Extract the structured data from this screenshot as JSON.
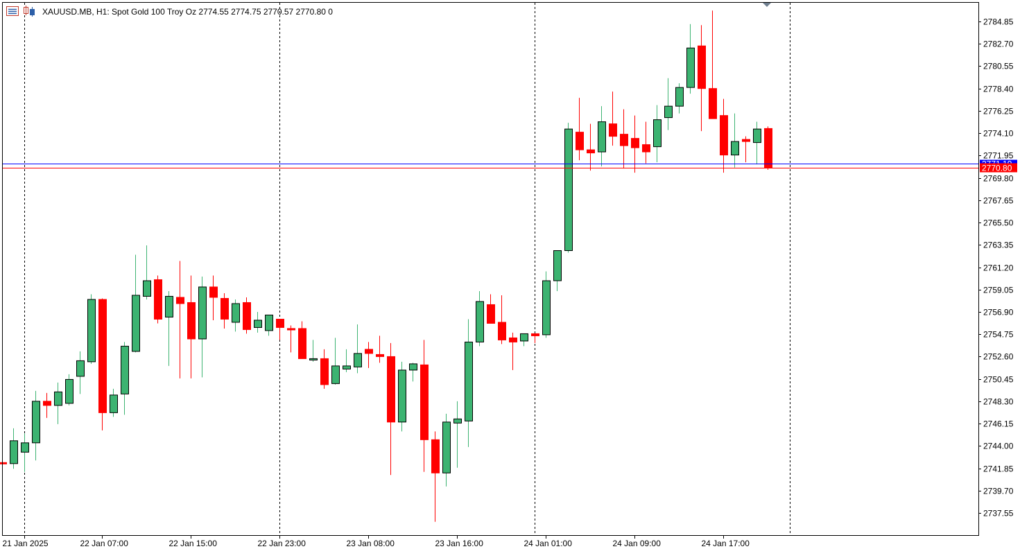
{
  "header": {
    "symbol_info": "XAUUSD.MB, H1:  Spot Gold 100 Troy Oz  2774.55 2774.75 2770.57 2770.80  0"
  },
  "colors": {
    "bull": "#3cb371",
    "bear": "#ff0000",
    "outline": "#000000",
    "bid_line": "#ff0000",
    "ask_line": "#0000ff",
    "grid_period": "#000000",
    "border": "#000000"
  },
  "icons": [
    "chart-window-icon",
    "chart-type-icon",
    "period-marker-icon"
  ],
  "price_labels": {
    "bid": "2770.80",
    "ask": "2771.19"
  },
  "chart_data": {
    "type": "candlestick",
    "symbol": "XAUUSD.MB",
    "timeframe": "H1",
    "ylim": [
      2735.4,
      2787.0
    ],
    "y_ticks": [
      "2784.85",
      "2782.70",
      "2780.55",
      "2778.40",
      "2776.25",
      "2774.10",
      "2771.95",
      "2769.80",
      "2767.65",
      "2765.50",
      "2763.35",
      "2761.20",
      "2759.05",
      "2756.90",
      "2754.75",
      "2752.60",
      "2750.45",
      "2748.30",
      "2746.15",
      "2744.00",
      "2741.85",
      "2739.70",
      "2737.55"
    ],
    "x_ticks": [
      {
        "label": "21 Jan 2025",
        "bar": 2
      },
      {
        "label": "22 Jan 07:00",
        "bar": 9
      },
      {
        "label": "22 Jan 15:00",
        "bar": 17
      },
      {
        "label": "22 Jan 23:00",
        "bar": 25
      },
      {
        "label": "23 Jan 08:00",
        "bar": 33
      },
      {
        "label": "23 Jan 16:00",
        "bar": 41
      },
      {
        "label": "24 Jan 01:00",
        "bar": 49
      },
      {
        "label": "24 Jan 09:00",
        "bar": 57
      },
      {
        "label": "24 Jan 17:00",
        "bar": 65
      }
    ],
    "period_separators_bars": [
      2,
      25,
      48,
      71
    ],
    "bid": 2770.8,
    "ask": 2771.19,
    "candles": [
      [
        2742.4,
        2742.4,
        2742.2,
        2742.3
      ],
      [
        2742.3,
        2745.7,
        2741.8,
        2744.5
      ],
      [
        2743.4,
        2745.2,
        2741.5,
        2744.3
      ],
      [
        2744.3,
        2749.3,
        2742.6,
        2748.3
      ],
      [
        2748.3,
        2749.1,
        2746.7,
        2747.9
      ],
      [
        2747.9,
        2750.1,
        2746.1,
        2749.2
      ],
      [
        2748.1,
        2750.9,
        2747.9,
        2750.4
      ],
      [
        2750.7,
        2753.1,
        2749.0,
        2752.2
      ],
      [
        2752.1,
        2758.6,
        2751.9,
        2758.1
      ],
      [
        2758.1,
        2758.2,
        2745.5,
        2747.2
      ],
      [
        2747.2,
        2749.5,
        2746.8,
        2748.9
      ],
      [
        2749.0,
        2754.0,
        2747.0,
        2753.6
      ],
      [
        2753.1,
        2762.4,
        2753.0,
        2758.5
      ],
      [
        2758.4,
        2763.3,
        2758.1,
        2759.9
      ],
      [
        2760.0,
        2760.4,
        2755.8,
        2756.2
      ],
      [
        2756.4,
        2758.9,
        2751.7,
        2758.4
      ],
      [
        2758.3,
        2761.8,
        2750.5,
        2757.7
      ],
      [
        2757.8,
        2760.4,
        2750.5,
        2754.3
      ],
      [
        2754.3,
        2760.3,
        2750.6,
        2759.3
      ],
      [
        2759.3,
        2760.4,
        2756.1,
        2758.3
      ],
      [
        2758.2,
        2758.7,
        2755.3,
        2756.2
      ],
      [
        2755.9,
        2758.1,
        2755.0,
        2757.7
      ],
      [
        2757.8,
        2758.3,
        2754.8,
        2755.2
      ],
      [
        2755.4,
        2756.9,
        2754.9,
        2756.1
      ],
      [
        2755.1,
        2756.6,
        2754.6,
        2756.6
      ],
      [
        2756.2,
        2756.2,
        2754.2,
        2755.4
      ],
      [
        2755.3,
        2755.6,
        2753.0,
        2755.2
      ],
      [
        2755.3,
        2756.0,
        2752.4,
        2752.4
      ],
      [
        2752.4,
        2754.2,
        2752.1,
        2752.4
      ],
      [
        2752.4,
        2753.3,
        2749.5,
        2749.9
      ],
      [
        2750.0,
        2754.4,
        2749.9,
        2751.7
      ],
      [
        2751.4,
        2753.3,
        2751.1,
        2751.7
      ],
      [
        2751.6,
        2755.7,
        2751.0,
        2752.9
      ],
      [
        2753.3,
        2754.0,
        2751.5,
        2752.9
      ],
      [
        2752.8,
        2754.6,
        2752.0,
        2752.6
      ],
      [
        2752.6,
        2753.9,
        2741.2,
        2746.3
      ],
      [
        2746.3,
        2752.1,
        2745.4,
        2751.3
      ],
      [
        2751.3,
        2752.0,
        2750.2,
        2751.9
      ],
      [
        2751.8,
        2754.2,
        2741.5,
        2744.6
      ],
      [
        2744.6,
        2745.4,
        2736.7,
        2741.4
      ],
      [
        2741.4,
        2747.1,
        2740.1,
        2746.3
      ],
      [
        2746.2,
        2748.3,
        2741.9,
        2746.6
      ],
      [
        2746.4,
        2756.2,
        2743.9,
        2754.0
      ],
      [
        2754.0,
        2758.9,
        2753.6,
        2757.9
      ],
      [
        2757.6,
        2758.6,
        2755.8,
        2755.8
      ],
      [
        2755.9,
        2758.5,
        2753.8,
        2754.2
      ],
      [
        2754.4,
        2754.9,
        2751.3,
        2754.0
      ],
      [
        2754.1,
        2754.8,
        2753.6,
        2754.8
      ],
      [
        2754.8,
        2754.8,
        2753.9,
        2754.6
      ],
      [
        2754.7,
        2760.8,
        2754.4,
        2759.9
      ],
      [
        2759.9,
        2762.8,
        2758.9,
        2762.8
      ],
      [
        2762.8,
        2775.1,
        2762.6,
        2774.5
      ],
      [
        2774.2,
        2777.5,
        2771.5,
        2772.5
      ],
      [
        2772.5,
        2775.0,
        2770.5,
        2772.2
      ],
      [
        2772.3,
        2776.7,
        2770.9,
        2775.2
      ],
      [
        2775.0,
        2778.1,
        2772.9,
        2773.8
      ],
      [
        2774.0,
        2776.4,
        2770.7,
        2772.9
      ],
      [
        2773.6,
        2775.8,
        2770.3,
        2772.7
      ],
      [
        2773.0,
        2775.2,
        2771.2,
        2772.3
      ],
      [
        2772.8,
        2776.8,
        2771.3,
        2775.4
      ],
      [
        2775.6,
        2779.4,
        2774.4,
        2776.7
      ],
      [
        2776.7,
        2778.9,
        2776.0,
        2778.5
      ],
      [
        2778.5,
        2784.6,
        2777.9,
        2782.3
      ],
      [
        2782.5,
        2784.5,
        2774.3,
        2778.4
      ],
      [
        2778.4,
        2785.9,
        2775.6,
        2775.5
      ],
      [
        2775.8,
        2777.4,
        2770.3,
        2772.0
      ],
      [
        2772.0,
        2776.0,
        2770.8,
        2773.3
      ],
      [
        2773.5,
        2773.8,
        2771.3,
        2773.3
      ],
      [
        2773.2,
        2775.2,
        2771.1,
        2774.5
      ],
      [
        2774.55,
        2774.75,
        2770.57,
        2770.8
      ]
    ]
  }
}
